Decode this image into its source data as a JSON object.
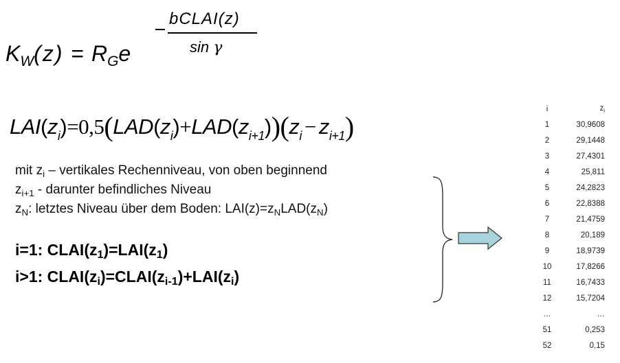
{
  "formula_kw": {
    "lhs_var": "K",
    "lhs_sub": "W",
    "lhs_arg": "(z)",
    "equals": "=",
    "r_var": "R",
    "r_sub": "G",
    "base": "e",
    "exp_minus": "−",
    "exp_numerator": "bCLAI(z)",
    "exp_den_text": "sin",
    "exp_den_symbol": "γ"
  },
  "formula_lai": {
    "lai": "LAI",
    "z": "z",
    "i": "i",
    "i1": "i+1",
    "eq": "=",
    "coef": "0,5",
    "lad": "LAD",
    "plus": "+",
    "minus": "−"
  },
  "description": {
    "line1_pre": "mit z",
    "line1_sub": "i",
    "line1_post": " – vertikales Rechenniveau, von oben beginnend",
    "line2_pre": "z",
    "line2_sub": "i+1",
    "line2_post": " - darunter befindliches Niveau",
    "line3_pre": "z",
    "line3_sub": "N",
    "line3_mid": ": letztes Niveau über dem Boden: LAI(z)=z",
    "line3_sub2": "N",
    "line3_mid2": "LAD(z",
    "line3_sub3": "N",
    "line3_end": ")"
  },
  "rules": {
    "r1_a": "i=1: CLAI(z",
    "r1_s1": "1",
    "r1_b": ")=LAI(z",
    "r1_s2": "1",
    "r1_c": ")",
    "r2_a": "i>1: CLAI(z",
    "r2_s1": "i",
    "r2_b": ")=CLAI(z",
    "r2_s2": "i-1",
    "r2_c": ")+LAI(z",
    "r2_s3": "i",
    "r2_d": ")"
  },
  "table": {
    "header_i": "i",
    "header_z": "z",
    "header_z_sub": "i",
    "rows": [
      [
        "1",
        "30,9608"
      ],
      [
        "2",
        "29,1448"
      ],
      [
        "3",
        "27,4301"
      ],
      [
        "4",
        "25,811"
      ],
      [
        "5",
        "24,2823"
      ],
      [
        "6",
        "22,8388"
      ],
      [
        "7",
        "21,4759"
      ],
      [
        "8",
        "20,189"
      ],
      [
        "9",
        "18,9739"
      ],
      [
        "10",
        "17,8266"
      ],
      [
        "11",
        "16,7433"
      ],
      [
        "12",
        "15,7204"
      ],
      [
        "…",
        "…"
      ],
      [
        "51",
        "0,253"
      ],
      [
        "52",
        "0,15"
      ]
    ]
  },
  "colors": {
    "arrow_fill": "#a9d3dc",
    "arrow_stroke": "#333333",
    "text": "#000000"
  }
}
